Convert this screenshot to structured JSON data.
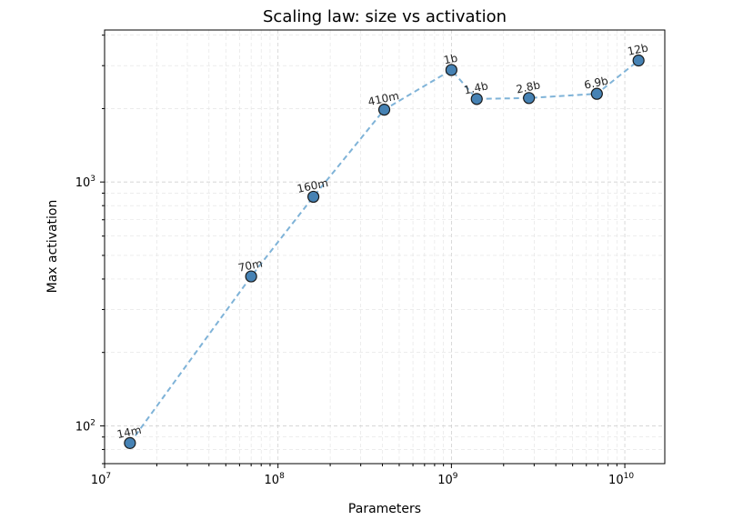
{
  "chart_data": {
    "type": "scatter",
    "title": "Scaling law: size vs activation",
    "xlabel": "Parameters",
    "ylabel": "Max activation",
    "xscale": "log",
    "yscale": "log",
    "xlim": [
      10000000,
      17000000000
    ],
    "ylim": [
      70,
      4200
    ],
    "grid": true,
    "x_ticks": [
      {
        "base": "10",
        "exp": "7",
        "value": 10000000
      },
      {
        "base": "10",
        "exp": "8",
        "value": 100000000
      },
      {
        "base": "10",
        "exp": "9",
        "value": 1000000000
      },
      {
        "base": "10",
        "exp": "10",
        "value": 10000000000
      }
    ],
    "y_ticks": [
      {
        "base": "10",
        "exp": "2",
        "value": 100
      },
      {
        "base": "10",
        "exp": "3",
        "value": 1000
      }
    ],
    "series": [
      {
        "color": "#4682b4",
        "line_color": "#7fb3d8",
        "line_style": "dashed",
        "points": [
          {
            "label": "14m",
            "x": 14000000,
            "y": 85
          },
          {
            "label": "70m",
            "x": 70000000,
            "y": 410
          },
          {
            "label": "160m",
            "x": 160000000,
            "y": 870
          },
          {
            "label": "410m",
            "x": 410000000,
            "y": 1980
          },
          {
            "label": "1b",
            "x": 1000000000,
            "y": 2880
          },
          {
            "label": "1.4b",
            "x": 1400000000,
            "y": 2190
          },
          {
            "label": "2.8b",
            "x": 2800000000,
            "y": 2210
          },
          {
            "label": "6.9b",
            "x": 6900000000,
            "y": 2300
          },
          {
            "label": "12b",
            "x": 12000000000,
            "y": 3150
          }
        ]
      }
    ]
  }
}
